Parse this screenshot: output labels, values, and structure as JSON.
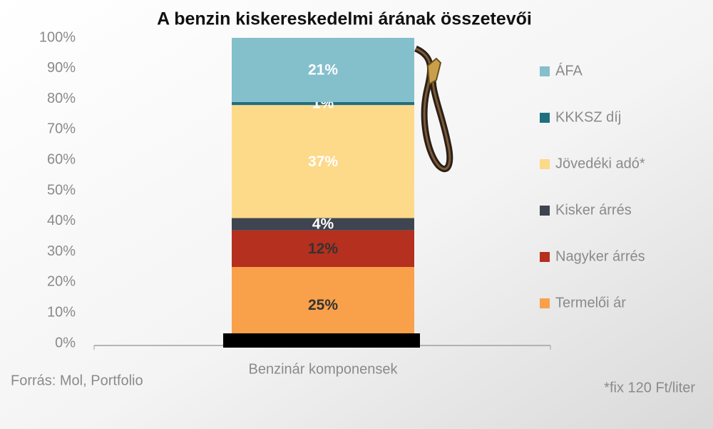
{
  "chart_data": {
    "type": "stacked-bar",
    "title": "A benzin kiskereskedelmi árának összetevői",
    "categories": [
      "Benzinár komponensek"
    ],
    "series": [
      {
        "name": "Termelői ár",
        "color": "#f9a04b",
        "values": [
          25
        ],
        "value_labels": [
          "25%"
        ]
      },
      {
        "name": "Nagyker árrés",
        "color": "#b5301e",
        "values": [
          12
        ],
        "value_labels": [
          "12%"
        ]
      },
      {
        "name": "Kisker árrés",
        "color": "#3e4450",
        "values": [
          4
        ],
        "value_labels": [
          "4%"
        ]
      },
      {
        "name": "Jövedéki adó*",
        "color": "#fdd98a",
        "values": [
          37
        ],
        "value_labels": [
          "37%"
        ]
      },
      {
        "name": "KKKSZ díj",
        "color": "#1f6f80",
        "values": [
          1
        ],
        "value_labels": [
          "1%"
        ]
      },
      {
        "name": "ÁFA",
        "color": "#84bfcc",
        "values": [
          21
        ],
        "value_labels": [
          "21%"
        ]
      }
    ],
    "ylim": [
      0,
      100
    ],
    "yticks": [
      {
        "value": 0,
        "label": "0%"
      },
      {
        "value": 10,
        "label": "10%"
      },
      {
        "value": 20,
        "label": "20%"
      },
      {
        "value": 30,
        "label": "30%"
      },
      {
        "value": 40,
        "label": "40%"
      },
      {
        "value": 50,
        "label": "50%"
      },
      {
        "value": 60,
        "label": "60%"
      },
      {
        "value": 70,
        "label": "70%"
      },
      {
        "value": 80,
        "label": "80%"
      },
      {
        "value": 90,
        "label": "90%"
      },
      {
        "value": 100,
        "label": "100%"
      }
    ],
    "grid": false,
    "legend": "right",
    "source": "Forrás: Mol, Portfolio",
    "note": "*fix 120 Ft/liter"
  }
}
